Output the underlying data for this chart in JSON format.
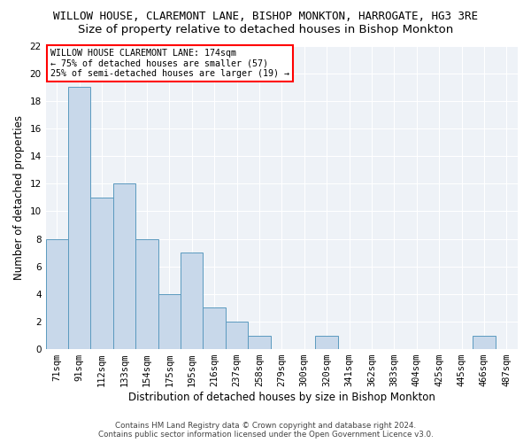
{
  "title": "WILLOW HOUSE, CLAREMONT LANE, BISHOP MONKTON, HARROGATE, HG3 3RE",
  "subtitle": "Size of property relative to detached houses in Bishop Monkton",
  "xlabel": "Distribution of detached houses by size in Bishop Monkton",
  "ylabel": "Number of detached properties",
  "bar_labels": [
    "71sqm",
    "91sqm",
    "112sqm",
    "133sqm",
    "154sqm",
    "175sqm",
    "195sqm",
    "216sqm",
    "237sqm",
    "258sqm",
    "279sqm",
    "300sqm",
    "320sqm",
    "341sqm",
    "362sqm",
    "383sqm",
    "404sqm",
    "425sqm",
    "445sqm",
    "466sqm",
    "487sqm"
  ],
  "bar_values": [
    8,
    19,
    11,
    12,
    8,
    4,
    7,
    3,
    2,
    1,
    0,
    0,
    1,
    0,
    0,
    0,
    0,
    0,
    0,
    1,
    0
  ],
  "bar_color": "#c8d8ea",
  "bar_edge_color": "#5b9abf",
  "ylim": [
    0,
    22
  ],
  "yticks": [
    0,
    2,
    4,
    6,
    8,
    10,
    12,
    14,
    16,
    18,
    20,
    22
  ],
  "annotation_box_text": "WILLOW HOUSE CLAREMONT LANE: 174sqm\n← 75% of detached houses are smaller (57)\n25% of semi-detached houses are larger (19) →",
  "footer_line1": "Contains HM Land Registry data © Crown copyright and database right 2024.",
  "footer_line2": "Contains public sector information licensed under the Open Government Licence v3.0.",
  "background_color": "#eef2f7",
  "grid_color": "#ffffff",
  "title_fontsize": 9,
  "subtitle_fontsize": 9.5,
  "axis_label_fontsize": 8.5,
  "tick_fontsize": 7.5,
  "ylabel_fontsize": 8.5
}
